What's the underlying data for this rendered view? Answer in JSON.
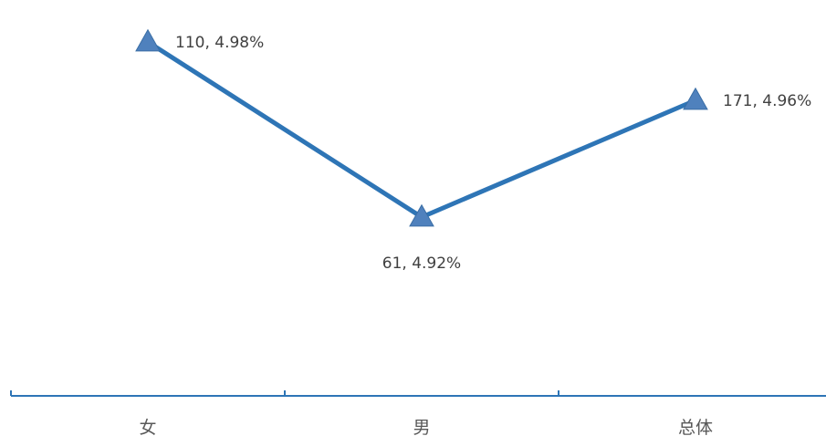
{
  "chart_data": {
    "type": "line",
    "title": "",
    "xlabel": "",
    "ylabel": "",
    "categories": [
      "女",
      "男",
      "总体"
    ],
    "series": [
      {
        "values": [
          4.98,
          4.92,
          4.96
        ],
        "counts": [
          110,
          61,
          171
        ],
        "data_labels": [
          "110, 4.98%",
          "61, 4.92%",
          "171, 4.96%"
        ],
        "color": "#2E75B6",
        "marker": "triangle",
        "marker_color": "#4F81BD"
      }
    ],
    "ylim": [
      4.86,
      4.985
    ],
    "grid": false,
    "legend": false,
    "axis_color": "#2E75B6"
  }
}
